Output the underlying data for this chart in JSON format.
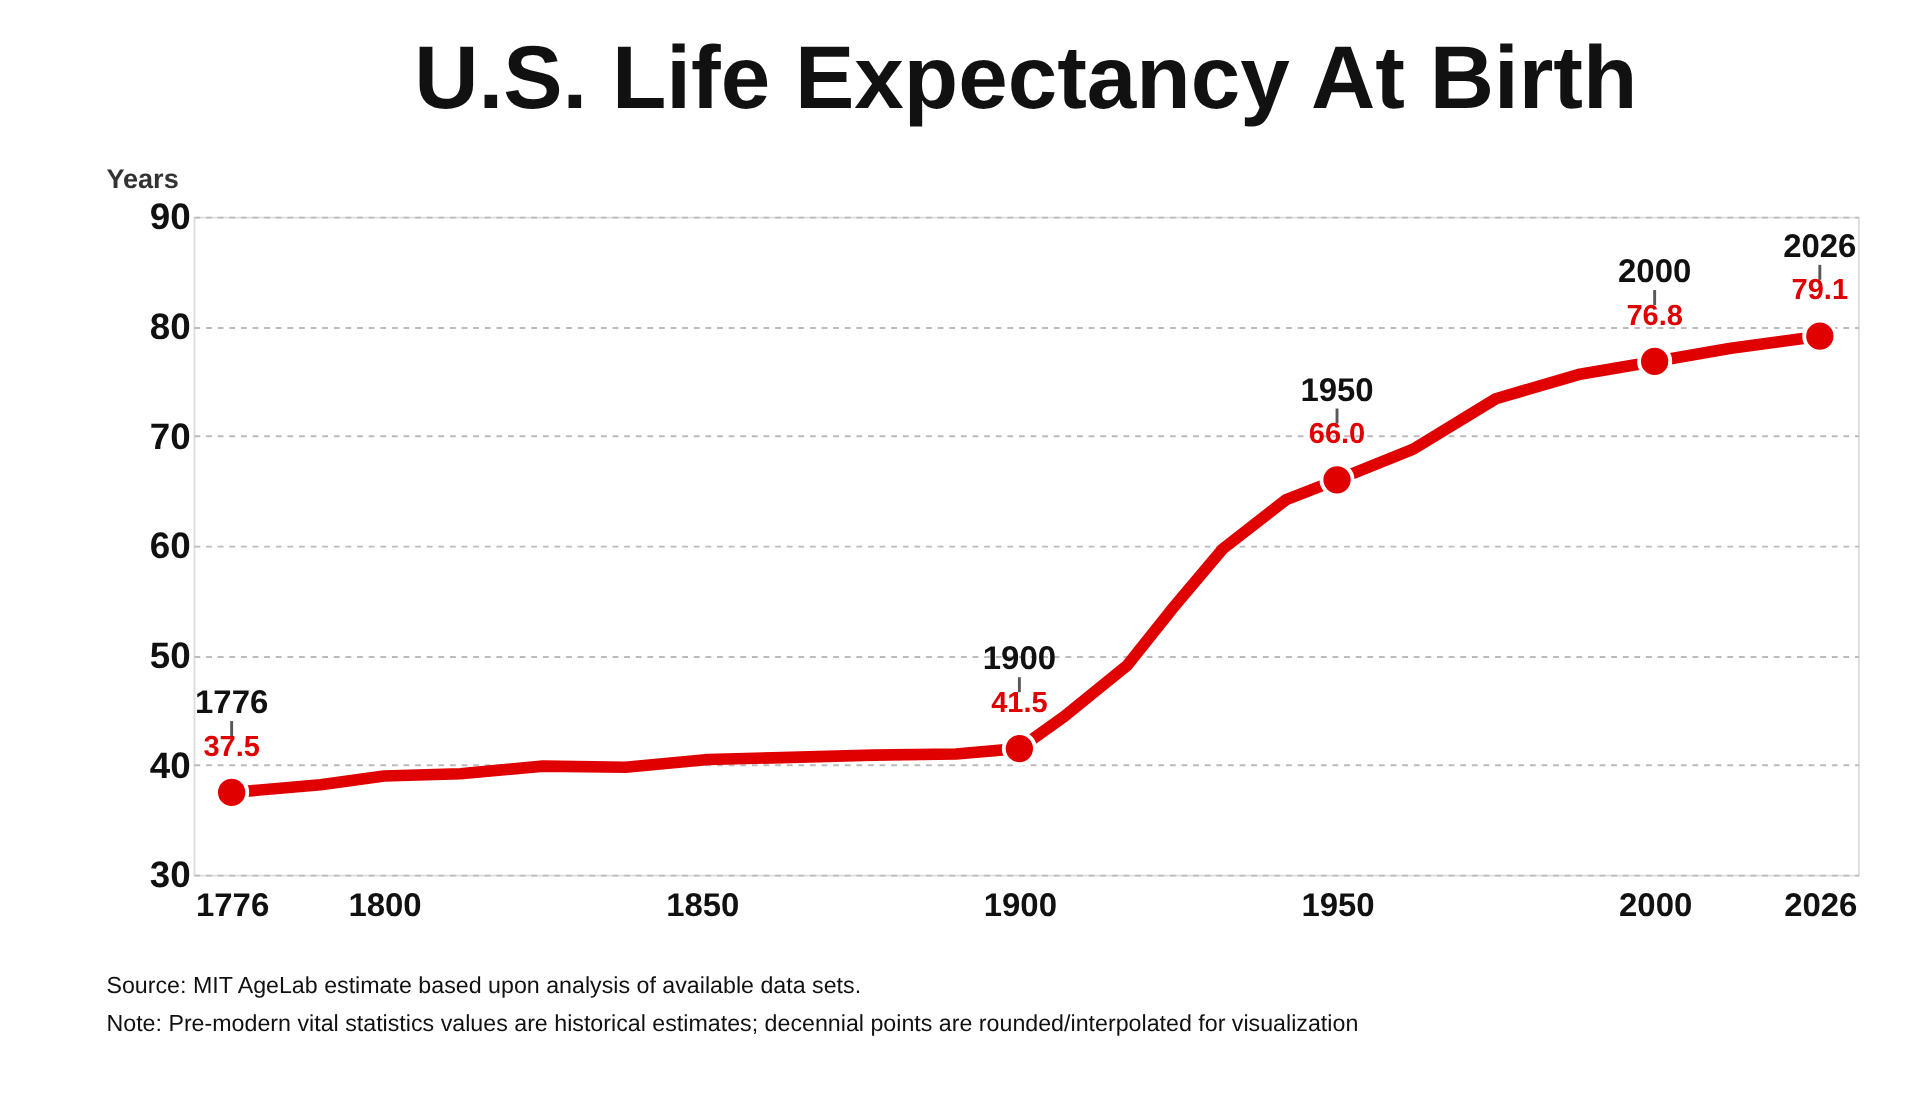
{
  "chart_data": {
    "type": "line",
    "title": "U.S. Life Expectancy At Birth",
    "ylabel": "Years",
    "xlim": [
      1770,
      2032
    ],
    "xticks": [
      1776,
      1800,
      1850,
      1900,
      1950,
      2000,
      2026
    ],
    "ylim": [
      30,
      90
    ],
    "yticks": [
      30,
      40,
      50,
      60,
      70,
      80,
      90
    ],
    "grid": "y",
    "series": [
      {
        "type": "line",
        "color": "#e00000",
        "marker": "none",
        "line_style": "solid",
        "x": [
          1776,
          1790,
          1800,
          1812,
          1825,
          1838,
          1851,
          1864,
          1877,
          1890,
          1900,
          1907,
          1917,
          1924,
          1932,
          1942,
          1950,
          1962,
          1975,
          1988,
          2000,
          2012,
          2026
        ],
        "values": [
          37.5,
          38.2,
          39.0,
          39.2,
          39.9,
          39.8,
          40.5,
          40.7,
          40.9,
          41.0,
          41.5,
          44.4,
          49.1,
          54.2,
          59.7,
          64.2,
          66.0,
          68.8,
          73.4,
          75.6,
          76.8,
          78.0,
          79.1
        ]
      },
      {
        "type": "scatter",
        "color": "#e00000",
        "marker": "circle",
        "x": [
          1776,
          1900,
          1950,
          2000,
          2026
        ],
        "values": [
          37.5,
          41.5,
          66.0,
          76.8,
          79.1
        ],
        "value_labels": [
          "37.5",
          "41.5",
          "66.0",
          "76.8",
          "79.1"
        ]
      }
    ],
    "annotations": [
      {
        "text": "1776",
        "x": 1776,
        "y": 37.5
      },
      {
        "text": "1900",
        "x": 1900,
        "y": 41.5
      },
      {
        "text": "1950",
        "x": 1950,
        "y": 66.0
      },
      {
        "text": "2000",
        "x": 2000,
        "y": 76.8
      },
      {
        "text": "2026",
        "x": 2026,
        "y": 79.1
      },
      "Source: MIT AgeLab estimate based upon analysis of available data sets.",
      "Note: Pre-modern vital statistics values are historical estimates; decennial points are rounded/interpolated for visualization"
    ]
  }
}
